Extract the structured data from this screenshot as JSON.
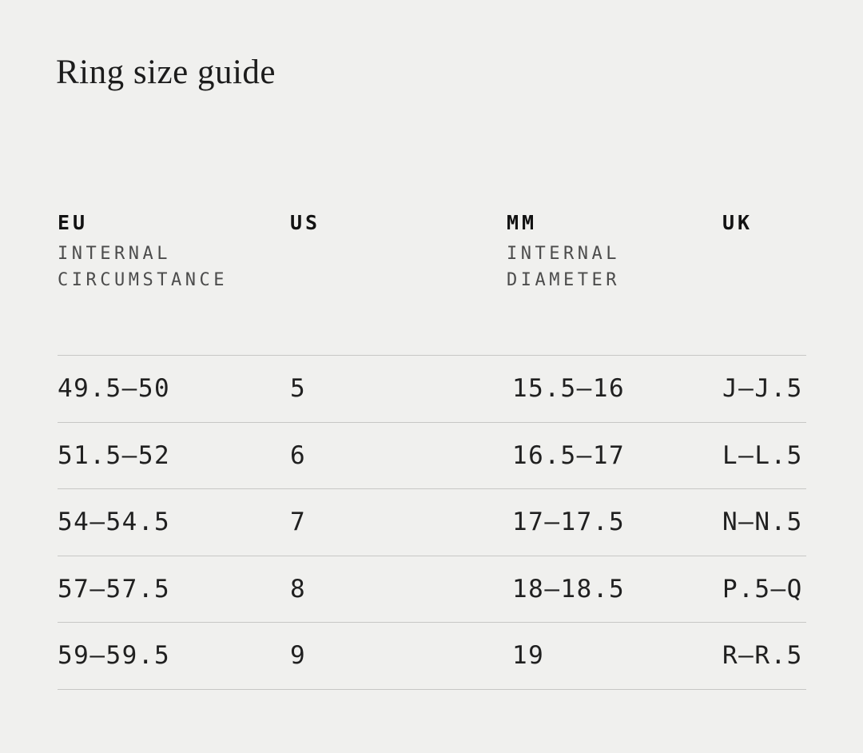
{
  "page": {
    "title": "Ring size guide",
    "background_color": "#f0f0ee",
    "divider_color": "#c7c7c5",
    "text_color": "#1e1e1e",
    "subheader_color": "#4c4c4c"
  },
  "table": {
    "columns": [
      {
        "label": "EU",
        "sublabel": "INTERNAL CIRCUMSTANCE"
      },
      {
        "label": "US",
        "sublabel": ""
      },
      {
        "label": "MM",
        "sublabel": "INTERNAL DIAMETER"
      },
      {
        "label": "UK",
        "sublabel": ""
      }
    ],
    "rows": [
      {
        "eu": "49.5—50",
        "us": "5",
        "mm": "15.5—16",
        "uk": "J—J.5"
      },
      {
        "eu": "51.5—52",
        "us": "6",
        "mm": "16.5—17",
        "uk": "L—L.5"
      },
      {
        "eu": "54—54.5",
        "us": "7",
        "mm": "17—17.5",
        "uk": "N—N.5"
      },
      {
        "eu": "57—57.5",
        "us": "8",
        "mm": "18—18.5",
        "uk": "P.5—Q"
      },
      {
        "eu": "59—59.5",
        "us": "9",
        "mm": "19",
        "uk": "R—R.5"
      }
    ]
  }
}
